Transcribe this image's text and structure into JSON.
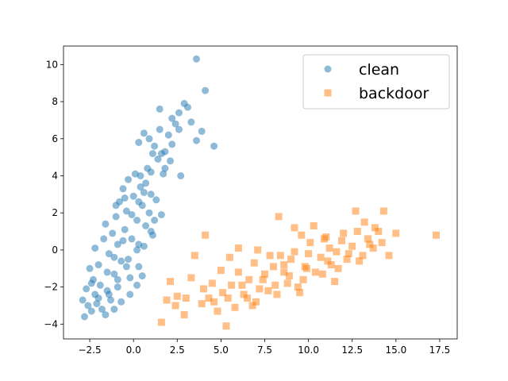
{
  "chart_data": {
    "type": "scatter",
    "title": "",
    "xlabel": "",
    "ylabel": "",
    "xlim": [
      -4.0,
      18.5
    ],
    "ylim": [
      -4.8,
      11.0
    ],
    "xticks": [
      -2.5,
      0.0,
      2.5,
      5.0,
      7.5,
      10.0,
      12.5,
      15.0,
      17.5
    ],
    "xtick_labels": [
      "−2.5",
      "0.0",
      "2.5",
      "5.0",
      "7.5",
      "10.0",
      "12.5",
      "15.0",
      "17.5"
    ],
    "yticks": [
      -4,
      -2,
      0,
      2,
      4,
      6,
      8,
      10
    ],
    "ytick_labels": [
      "−4",
      "−2",
      "0",
      "2",
      "4",
      "6",
      "8",
      "10"
    ],
    "grid": false,
    "legend": {
      "placement": "top-right"
    },
    "series": [
      {
        "name": "clean",
        "marker": "circle",
        "color": "#1f77b4",
        "alpha": 0.5,
        "points": [
          [
            -2.8,
            -3.6
          ],
          [
            -2.9,
            -2.7
          ],
          [
            -2.7,
            -2.1
          ],
          [
            -2.4,
            -3.3
          ],
          [
            -2.3,
            -1.6
          ],
          [
            -2.1,
            -2.9
          ],
          [
            -2.0,
            -0.8
          ],
          [
            -1.8,
            -3.2
          ],
          [
            -1.6,
            -3.5
          ],
          [
            -1.5,
            -2.2
          ],
          [
            -1.4,
            -0.2
          ],
          [
            -1.2,
            0.9
          ],
          [
            -1.1,
            -1.3
          ],
          [
            -1.0,
            1.8
          ],
          [
            -0.9,
            0.3
          ],
          [
            -0.8,
            2.6
          ],
          [
            -0.7,
            -0.6
          ],
          [
            -0.6,
            3.3
          ],
          [
            -0.5,
            1.1
          ],
          [
            -0.4,
            2.1
          ],
          [
            -0.3,
            3.8
          ],
          [
            -0.2,
            -1.5
          ],
          [
            -0.1,
            0.6
          ],
          [
            0.0,
            2.9
          ],
          [
            0.1,
            4.1
          ],
          [
            0.2,
            1.6
          ],
          [
            0.3,
            -0.9
          ],
          [
            0.4,
            3.4
          ],
          [
            0.5,
            2.4
          ],
          [
            0.6,
            0.2
          ],
          [
            0.7,
            1.3
          ],
          [
            0.8,
            4.4
          ],
          [
            0.9,
            2.0
          ],
          [
            1.0,
            3.0
          ],
          [
            1.1,
            0.8
          ],
          [
            1.2,
            1.6
          ],
          [
            1.3,
            2.7
          ],
          [
            -2.5,
            -1.0
          ],
          [
            -2.2,
            0.1
          ],
          [
            -1.9,
            -1.9
          ],
          [
            -1.7,
            0.6
          ],
          [
            -1.3,
            -2.7
          ],
          [
            -0.9,
            -2.0
          ],
          [
            -0.3,
            -0.5
          ],
          [
            0.2,
            0.0
          ],
          [
            -1.6,
            1.4
          ],
          [
            -1.0,
            2.4
          ],
          [
            -0.5,
            2.8
          ],
          [
            0.4,
            4.0
          ],
          [
            0.7,
            3.6
          ],
          [
            -2.6,
            -3.0
          ],
          [
            -2.2,
            -2.4
          ],
          [
            -1.5,
            -1.2
          ],
          [
            -1.1,
            -0.4
          ],
          [
            -0.6,
            0.5
          ],
          [
            -0.1,
            1.9
          ],
          [
            0.3,
            2.6
          ],
          [
            0.6,
            3.1
          ],
          [
            1.0,
            4.2
          ],
          [
            1.4,
            4.9
          ],
          [
            1.2,
            5.6
          ],
          [
            1.6,
            5.2
          ],
          [
            0.9,
            6.0
          ],
          [
            1.5,
            6.5
          ],
          [
            2.0,
            6.2
          ],
          [
            1.8,
            5.3
          ],
          [
            2.4,
            6.8
          ],
          [
            2.6,
            7.4
          ],
          [
            2.9,
            7.9
          ],
          [
            3.1,
            7.7
          ],
          [
            2.2,
            5.7
          ],
          [
            2.6,
            6.5
          ],
          [
            3.3,
            6.9
          ],
          [
            3.6,
            5.9
          ],
          [
            3.9,
            6.4
          ],
          [
            4.6,
            5.6
          ],
          [
            4.1,
            8.6
          ],
          [
            3.6,
            10.3
          ],
          [
            2.7,
            4.0
          ],
          [
            1.7,
            4.1
          ],
          [
            0.6,
            6.3
          ],
          [
            1.1,
            5.2
          ],
          [
            2.1,
            4.8
          ],
          [
            1.8,
            4.4
          ],
          [
            1.5,
            7.6
          ],
          [
            2.2,
            7.1
          ],
          [
            0.3,
            5.8
          ],
          [
            1.6,
            1.9
          ],
          [
            1.0,
            1.0
          ],
          [
            0.3,
            0.3
          ],
          [
            -0.4,
            -0.9
          ],
          [
            -0.9,
            -1.6
          ],
          [
            -1.4,
            -2.4
          ],
          [
            -2.0,
            -2.6
          ],
          [
            0.5,
            -1.4
          ],
          [
            0.2,
            -1.9
          ],
          [
            -0.2,
            -2.4
          ],
          [
            -0.7,
            -2.8
          ],
          [
            -1.1,
            -3.2
          ],
          [
            -2.4,
            -1.8
          ]
        ]
      },
      {
        "name": "backdoor",
        "marker": "square",
        "color": "#ff7f0e",
        "alpha": 0.5,
        "points": [
          [
            1.6,
            -3.9
          ],
          [
            1.9,
            -2.7
          ],
          [
            2.1,
            -1.7
          ],
          [
            2.5,
            -2.5
          ],
          [
            2.9,
            -3.5
          ],
          [
            3.3,
            -1.5
          ],
          [
            3.5,
            -0.3
          ],
          [
            4.1,
            0.8
          ],
          [
            4.0,
            -2.1
          ],
          [
            4.6,
            -2.8
          ],
          [
            5.0,
            -1.1
          ],
          [
            5.3,
            -4.1
          ],
          [
            5.6,
            -1.9
          ],
          [
            5.8,
            -3.1
          ],
          [
            6.0,
            0.1
          ],
          [
            6.3,
            -2.4
          ],
          [
            6.6,
            -1.6
          ],
          [
            6.9,
            -0.7
          ],
          [
            7.2,
            -2.1
          ],
          [
            7.5,
            -1.3
          ],
          [
            7.8,
            -0.3
          ],
          [
            8.1,
            -1.9
          ],
          [
            8.3,
            1.8
          ],
          [
            8.6,
            -0.8
          ],
          [
            8.9,
            -1.4
          ],
          [
            9.2,
            -0.1
          ],
          [
            9.5,
            -2.3
          ],
          [
            9.8,
            -0.9
          ],
          [
            10.1,
            0.4
          ],
          [
            10.4,
            -1.2
          ],
          [
            10.7,
            -0.4
          ],
          [
            11.0,
            0.7
          ],
          [
            11.3,
            -0.8
          ],
          [
            11.6,
            -0.1
          ],
          [
            11.9,
            0.5
          ],
          [
            12.2,
            -0.5
          ],
          [
            12.5,
            0.2
          ],
          [
            12.8,
            1.0
          ],
          [
            13.1,
            -0.3
          ],
          [
            13.4,
            0.6
          ],
          [
            13.7,
            0.1
          ],
          [
            14.0,
            1.0
          ],
          [
            14.3,
            2.1
          ],
          [
            14.6,
            -0.3
          ],
          [
            15.0,
            0.9
          ],
          [
            17.3,
            0.8
          ],
          [
            12.7,
            2.1
          ],
          [
            13.2,
            1.5
          ],
          [
            9.2,
            1.2
          ],
          [
            10.3,
            1.3
          ],
          [
            7.1,
            0.0
          ],
          [
            6.8,
            -3.0
          ],
          [
            5.5,
            -0.4
          ],
          [
            4.3,
            -2.6
          ],
          [
            3.9,
            -2.9
          ],
          [
            5.1,
            -2.3
          ],
          [
            6.2,
            -1.9
          ],
          [
            7.4,
            -1.6
          ],
          [
            8.6,
            -1.2
          ],
          [
            9.9,
            -1.0
          ],
          [
            11.1,
            -0.6
          ],
          [
            12.3,
            -0.2
          ],
          [
            13.5,
            0.3
          ],
          [
            8.0,
            -0.9
          ],
          [
            9.0,
            -0.5
          ],
          [
            10.0,
            -0.2
          ],
          [
            11.2,
            0.1
          ],
          [
            6.5,
            -2.6
          ],
          [
            7.7,
            -2.2
          ],
          [
            8.8,
            -1.8
          ],
          [
            9.7,
            -1.6
          ],
          [
            10.8,
            -1.3
          ],
          [
            4.8,
            -3.3
          ],
          [
            3.0,
            -2.6
          ],
          [
            2.4,
            -3.0
          ],
          [
            7.0,
            -2.8
          ],
          [
            8.2,
            -2.4
          ],
          [
            9.4,
            -2.0
          ],
          [
            11.7,
            -1.0
          ],
          [
            12.9,
            -0.6
          ],
          [
            14.2,
            0.4
          ],
          [
            6.0,
            -1.2
          ],
          [
            5.4,
            -2.6
          ],
          [
            9.6,
            0.8
          ],
          [
            10.9,
            0.6
          ],
          [
            12.0,
            0.9
          ],
          [
            13.8,
            1.2
          ],
          [
            8.4,
            -0.3
          ],
          [
            11.5,
            -1.7
          ],
          [
            4.5,
            -1.8
          ]
        ]
      }
    ]
  }
}
